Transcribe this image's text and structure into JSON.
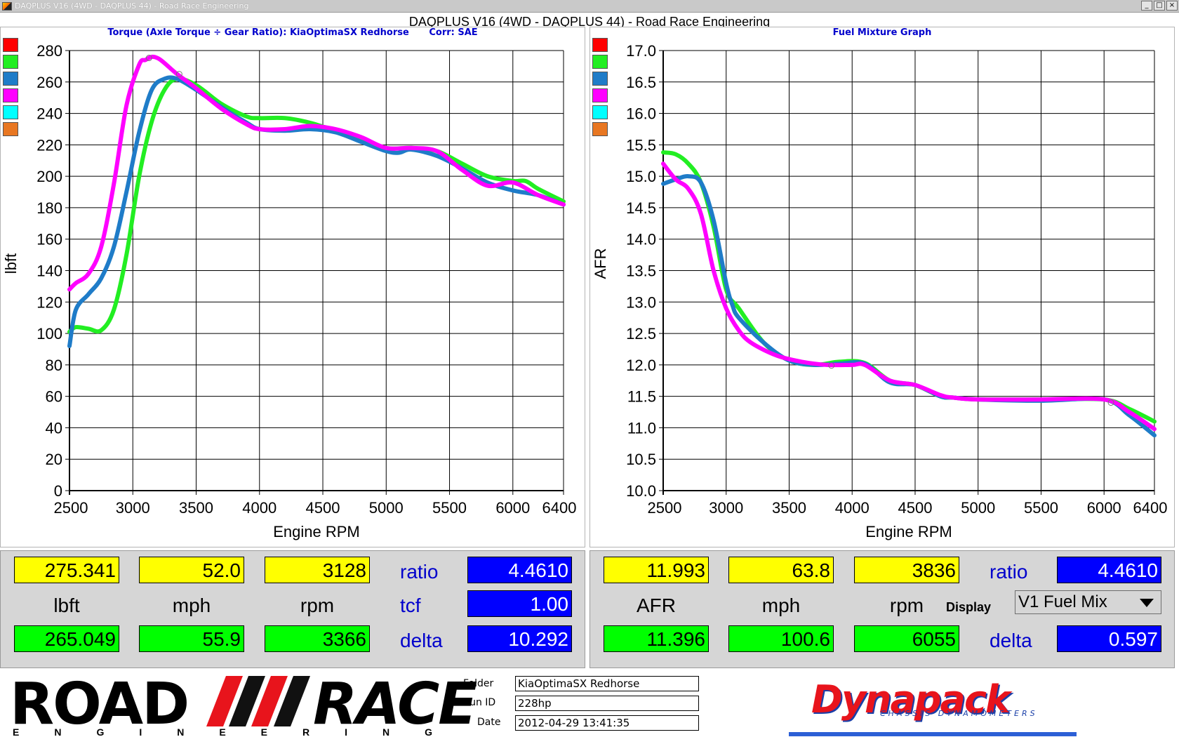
{
  "window": {
    "title": "DAQPLUS V16 (4WD - DAQPLUS 44) - Road Race Engineering",
    "buttons": [
      "_",
      "□",
      "×"
    ]
  },
  "heading": "DAQPLUS V16 (4WD - DAQPLUS 44) - Road Race Engineering",
  "left_panel": {
    "title": "Torque (Axle Torque ÷ Gear Ratio): KiaOptimaSX Redhorse",
    "corr": "Corr: SAE",
    "swatch_colors": [
      "#ff0000",
      "#22ee22",
      "#1f7cc8",
      "#ff00ff",
      "#00ffff",
      "#e87722"
    ]
  },
  "right_panel": {
    "title": "Fuel Mixture Graph",
    "swatch_colors": [
      "#ff0000",
      "#22ee22",
      "#1f7cc8",
      "#ff00ff",
      "#00ffff",
      "#e87722"
    ]
  },
  "chart_data": [
    {
      "type": "line",
      "xlabel": "Engine RPM",
      "ylabel": "lbft",
      "xlim": [
        2500,
        6400
      ],
      "ylim": [
        0,
        280
      ],
      "xticks": [
        "2500",
        "3000",
        "3500",
        "4000",
        "4500",
        "5000",
        "5500",
        "6000",
        "6400"
      ],
      "yticks": [
        "280",
        "260",
        "240",
        "220",
        "200",
        "180",
        "160",
        "140",
        "120",
        "100",
        "80",
        "60",
        "40",
        "20",
        "0"
      ],
      "grid": true,
      "series": [
        {
          "color": "#22ee22",
          "x": [
            2500,
            2550,
            2650,
            2750,
            2850,
            2950,
            3050,
            3150,
            3250,
            3350,
            3500,
            3700,
            3900,
            4000,
            4200,
            4400,
            4600,
            4800,
            5000,
            5200,
            5400,
            5600,
            5800,
            6000,
            6100,
            6200,
            6400
          ],
          "y": [
            101,
            104,
            103,
            102,
            115,
            150,
            200,
            235,
            255,
            262,
            258,
            246,
            238,
            237,
            237,
            234,
            229,
            224,
            218,
            218,
            216,
            208,
            200,
            197,
            197,
            192,
            184
          ]
        },
        {
          "color": "#1f7cc8",
          "x": [
            2500,
            2550,
            2650,
            2750,
            2850,
            2950,
            3050,
            3150,
            3250,
            3350,
            3500,
            3700,
            3900,
            4000,
            4200,
            4400,
            4600,
            4800,
            5000,
            5100,
            5200,
            5400,
            5600,
            5800,
            6000,
            6200,
            6400
          ],
          "y": [
            92,
            115,
            125,
            135,
            155,
            190,
            228,
            255,
            262,
            262,
            255,
            244,
            234,
            230,
            229,
            230,
            228,
            222,
            216,
            215,
            217,
            213,
            205,
            196,
            191,
            188,
            182
          ]
        },
        {
          "color": "#ff00ff",
          "x": [
            2500,
            2550,
            2650,
            2750,
            2850,
            2950,
            3050,
            3100,
            3150,
            3200,
            3250,
            3350,
            3500,
            3700,
            3900,
            4000,
            4200,
            4400,
            4600,
            4800,
            5000,
            5200,
            5400,
            5600,
            5800,
            6000,
            6200,
            6400
          ],
          "y": [
            128,
            132,
            138,
            155,
            195,
            245,
            271,
            274,
            276,
            275,
            272,
            265,
            256,
            243,
            233,
            230,
            230,
            232,
            230,
            225,
            218,
            218,
            216,
            204,
            194,
            196,
            188,
            182
          ]
        }
      ],
      "markers": [
        {
          "color": "#ff00ff",
          "x": 3128,
          "y": 275.3
        },
        {
          "color": "#22ee22",
          "x": 3366,
          "y": 265.0
        }
      ]
    },
    {
      "type": "line",
      "xlabel": "Engine RPM",
      "ylabel": "AFR",
      "xlim": [
        2500,
        6400
      ],
      "ylim": [
        10.0,
        17.0
      ],
      "xticks": [
        "2500",
        "3000",
        "3500",
        "4000",
        "4500",
        "5000",
        "5500",
        "6000",
        "6400"
      ],
      "yticks": [
        "17.0",
        "16.5",
        "16.0",
        "15.5",
        "15.0",
        "14.5",
        "14.0",
        "13.5",
        "13.0",
        "12.5",
        "12.0",
        "11.5",
        "11.0",
        "10.5",
        "10.0"
      ],
      "grid": true,
      "series": [
        {
          "color": "#22ee22",
          "x": [
            2500,
            2600,
            2700,
            2800,
            2900,
            3000,
            3100,
            3300,
            3500,
            3700,
            3900,
            4100,
            4300,
            4500,
            4700,
            4800,
            5000,
            5500,
            6000,
            6200,
            6400
          ],
          "y": [
            15.38,
            15.35,
            15.2,
            14.9,
            14.2,
            13.2,
            12.9,
            12.35,
            12.07,
            12.0,
            12.05,
            12.03,
            11.75,
            11.68,
            11.5,
            11.48,
            11.45,
            11.45,
            11.45,
            11.3,
            11.1
          ]
        },
        {
          "color": "#1f7cc8",
          "x": [
            2500,
            2600,
            2700,
            2800,
            2900,
            3000,
            3050,
            3100,
            3300,
            3500,
            3700,
            3900,
            4100,
            4300,
            4500,
            4700,
            4800,
            5000,
            5500,
            6000,
            6200,
            6400
          ],
          "y": [
            14.88,
            14.95,
            15.0,
            14.9,
            14.3,
            13.3,
            12.95,
            12.75,
            12.35,
            12.07,
            12.0,
            12.02,
            12.02,
            11.72,
            11.68,
            11.5,
            11.48,
            11.45,
            11.43,
            11.45,
            11.2,
            10.88
          ]
        },
        {
          "color": "#ff00ff",
          "x": [
            2500,
            2600,
            2700,
            2800,
            2900,
            3000,
            3100,
            3200,
            3400,
            3600,
            3800,
            4000,
            4100,
            4300,
            4500,
            4700,
            4800,
            5000,
            5500,
            6000,
            6200,
            6400
          ],
          "y": [
            15.2,
            14.95,
            14.8,
            14.4,
            13.5,
            12.9,
            12.55,
            12.35,
            12.15,
            12.05,
            12.0,
            12.0,
            12.0,
            11.75,
            11.68,
            11.52,
            11.48,
            11.45,
            11.45,
            11.45,
            11.25,
            10.98
          ]
        }
      ],
      "markers": [
        {
          "color": "#22ee22",
          "x": 3836,
          "y": 11.99
        },
        {
          "color": "#22ee22",
          "x": 6055,
          "y": 11.4
        }
      ]
    }
  ],
  "left_readout": {
    "row1": [
      "275.341",
      "52.0",
      "3128"
    ],
    "units": [
      "lbft",
      "mph",
      "rpm"
    ],
    "row2": [
      "265.049",
      "55.9",
      "3366"
    ],
    "labels": {
      "ratio": "ratio",
      "tcf": "tcf",
      "delta": "delta"
    },
    "values": {
      "ratio": "4.4610",
      "tcf": "1.00",
      "delta": "10.292"
    }
  },
  "right_readout": {
    "row1": [
      "11.993",
      "63.8",
      "3836"
    ],
    "units": [
      "AFR",
      "mph",
      "rpm"
    ],
    "row2": [
      "11.396",
      "100.6",
      "6055"
    ],
    "labels": {
      "ratio": "ratio",
      "display": "Display",
      "delta": "delta"
    },
    "values": {
      "ratio": "4.4610",
      "display": "V1 Fuel Mix",
      "delta": "0.597"
    }
  },
  "footer": {
    "logo_road": "ROAD",
    "logo_race": "RACE",
    "logo_engineering": "ENGINEERING",
    "folder_label": "Folder",
    "folder_value": "KiaOptimaSX Redhorse",
    "runid_label": "Run ID",
    "runid_value": "228hp",
    "date_label": "Date",
    "date_value": "2012-04-29 13:41:35",
    "brand": "Dynapack",
    "brand_sub": "CHASSIS DYNAMOMETERS"
  }
}
